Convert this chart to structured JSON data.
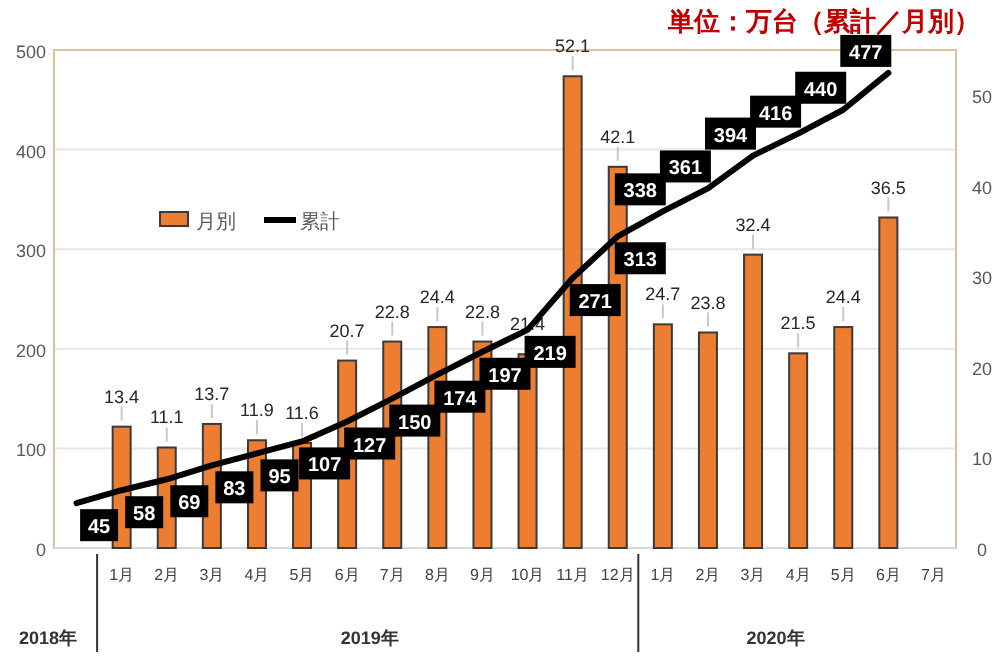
{
  "chart_data": {
    "type": "bar",
    "title": "単位：万台（累計／月別）",
    "categories": [
      null,
      "1月",
      "2月",
      "3月",
      "4月",
      "5月",
      "6月",
      "7月",
      "8月",
      "9月",
      "10月",
      "11月",
      "12月",
      "1月",
      "2月",
      "3月",
      "4月",
      "5月",
      "6月",
      "7月"
    ],
    "series": [
      {
        "name": "月別",
        "axis": "y2",
        "color": "#ed7d31",
        "values": [
          null,
          13.4,
          11.1,
          13.7,
          11.9,
          11.6,
          20.7,
          22.8,
          24.4,
          22.8,
          21.4,
          52.1,
          42.1,
          24.7,
          23.8,
          32.4,
          21.5,
          24.4,
          36.5,
          null
        ]
      },
      {
        "name": "累計",
        "type": "line",
        "axis": "y",
        "color": "#000000",
        "values": [
          45,
          58,
          69,
          83,
          95,
          107,
          127,
          150,
          174,
          197,
          219,
          271,
          313,
          338,
          361,
          394,
          416,
          440,
          477,
          null
        ]
      }
    ],
    "ylim": [
      0,
      500
    ],
    "yticks": [
      0,
      100,
      200,
      300,
      400,
      500
    ],
    "y2lim": [
      0,
      55
    ],
    "y2ticks": [
      0,
      10,
      20,
      30,
      40,
      50
    ],
    "grid": "y",
    "legend": "left",
    "data_labels": true,
    "line_style": "solid",
    "annotations": [
      "2018年",
      "2019年",
      "2020年"
    ]
  }
}
